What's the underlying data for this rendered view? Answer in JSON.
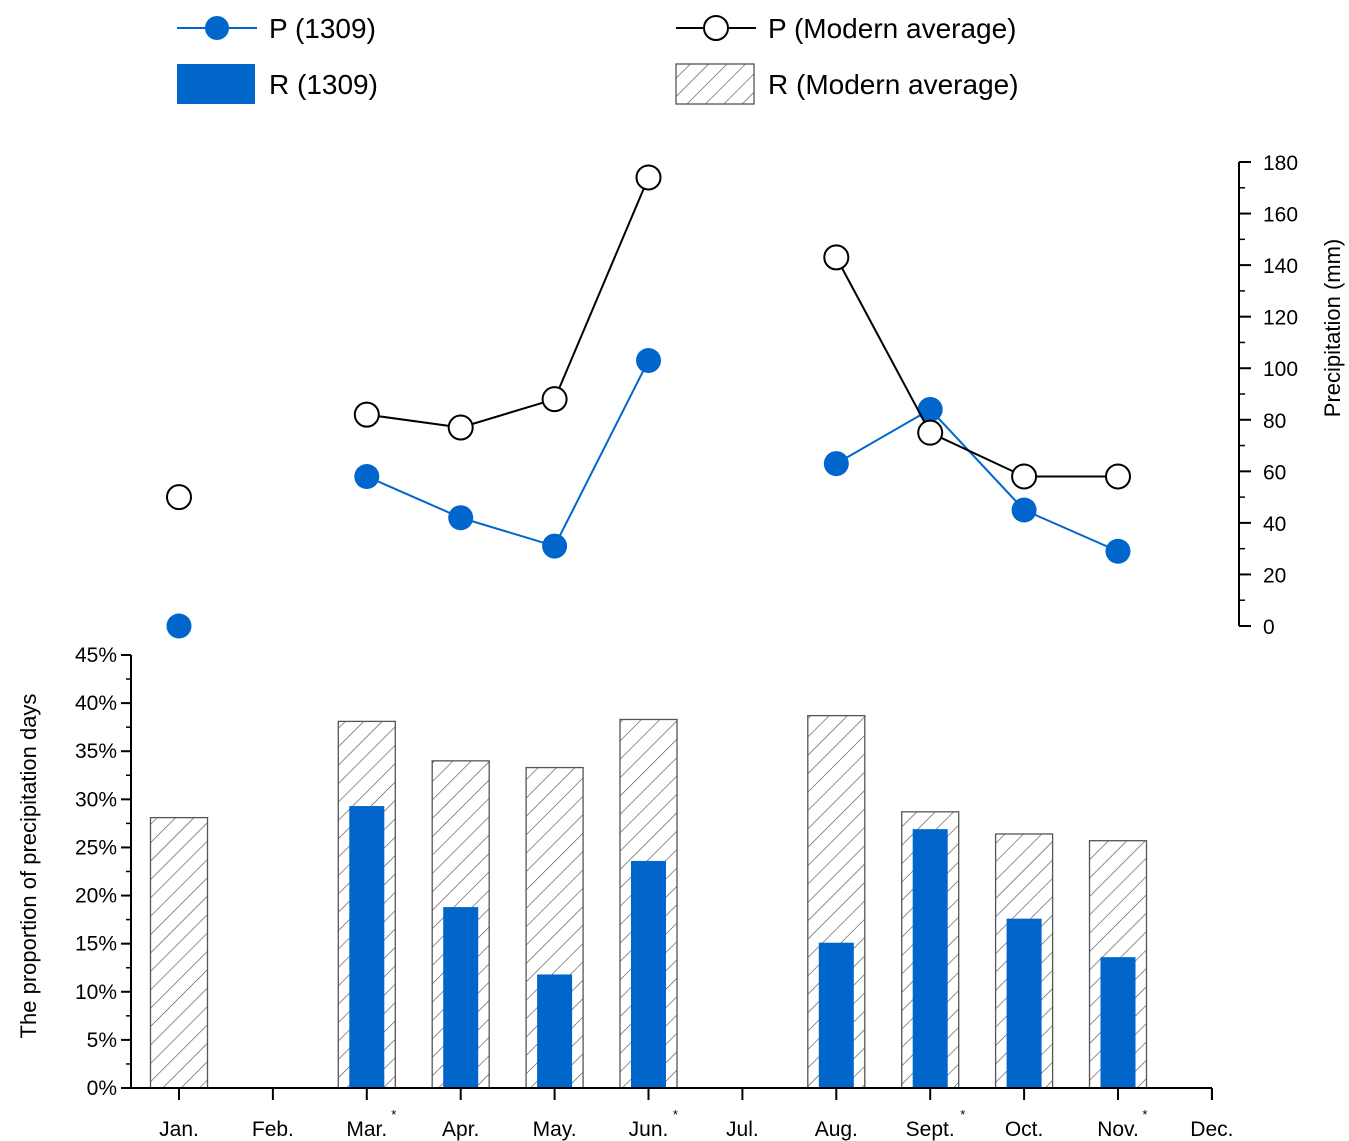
{
  "legend": {
    "p1309": "P (1309)",
    "pModern": "P (Modern average)",
    "r1309": "R (1309)",
    "rModern": "R (Modern average)"
  },
  "chart_data": {
    "type": "bar+line",
    "categories": [
      "Jan.",
      "Feb.",
      "Mar.",
      "Apr.",
      "May.",
      "Jun.",
      "Jul.",
      "Aug.",
      "Sept.",
      "Oct.",
      "Nov.",
      "Dec."
    ],
    "category_markers": [
      "",
      "",
      "*",
      "",
      "",
      "*",
      "",
      "",
      "*",
      "",
      "*",
      ""
    ],
    "left_axis": {
      "label": "The proportion of precipitation days",
      "ylim": [
        0,
        45
      ],
      "ticks": [
        "0%",
        "5%",
        "10%",
        "15%",
        "20%",
        "25%",
        "30%",
        "35%",
        "40%",
        "45%"
      ]
    },
    "right_axis": {
      "label": "Precipitation (mm)",
      "ylim": [
        0,
        180
      ],
      "ticks": [
        "0",
        "20",
        "40",
        "60",
        "80",
        "100",
        "120",
        "140",
        "160",
        "180"
      ]
    },
    "series": [
      {
        "name": "R (1309)",
        "type": "bar",
        "axis": "left",
        "color": "#0066CC",
        "values": [
          null,
          null,
          29.3,
          18.8,
          11.8,
          23.6,
          null,
          15.1,
          26.9,
          17.6,
          13.6,
          null
        ]
      },
      {
        "name": "R (Modern average)",
        "type": "bar",
        "axis": "left",
        "pattern": "hatched",
        "values": [
          28.1,
          null,
          38.1,
          34.0,
          33.3,
          38.3,
          null,
          38.7,
          28.7,
          26.4,
          25.7,
          null
        ]
      },
      {
        "name": "P (1309)",
        "type": "line",
        "axis": "right",
        "color": "#0066CC",
        "marker": "filled-circle",
        "values": [
          0,
          null,
          58,
          42,
          31,
          103,
          null,
          63,
          84,
          45,
          29,
          null
        ]
      },
      {
        "name": "P (Modern average)",
        "type": "line",
        "axis": "right",
        "color": "#000000",
        "marker": "open-circle",
        "values": [
          50,
          null,
          82,
          77,
          88,
          174,
          null,
          143,
          75,
          58,
          58,
          null
        ]
      }
    ]
  }
}
